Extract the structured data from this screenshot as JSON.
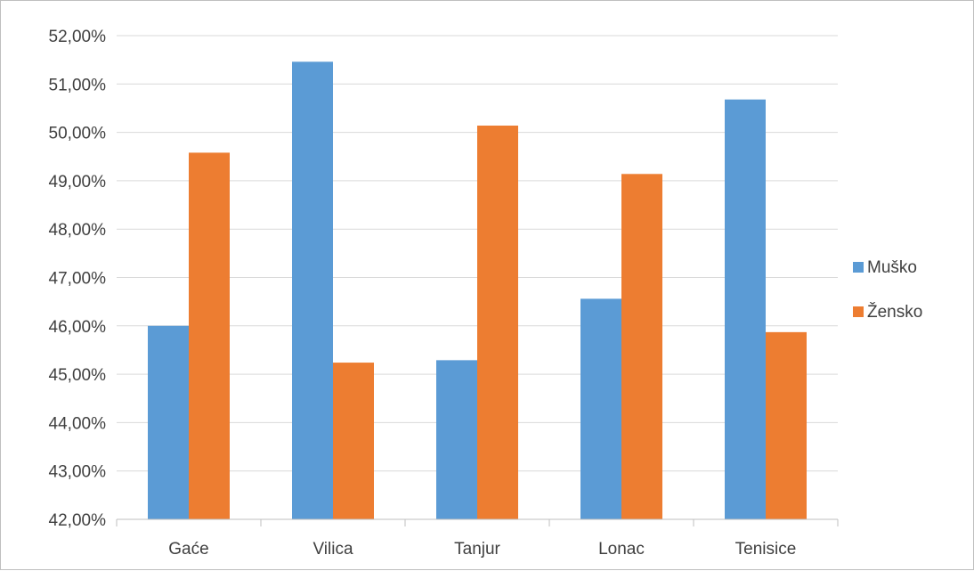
{
  "chart_data": {
    "type": "bar",
    "categories": [
      "Gaće",
      "Vilica",
      "Tanjur",
      "Lonac",
      "Tenisice"
    ],
    "series": [
      {
        "name": "Muško",
        "values": [
          46.0,
          51.46,
          45.29,
          46.56,
          50.68
        ],
        "color": "#5b9bd5"
      },
      {
        "name": "Žensko",
        "values": [
          49.58,
          45.24,
          50.14,
          49.14,
          45.87
        ],
        "color": "#ed7d31"
      }
    ],
    "ylim": [
      42,
      52
    ],
    "y_ticks": [
      "42,00%",
      "43,00%",
      "44,00%",
      "45,00%",
      "46,00%",
      "47,00%",
      "48,00%",
      "49,00%",
      "50,00%",
      "51,00%",
      "52,00%"
    ],
    "grid": true,
    "legend_position": "right",
    "title": "",
    "xlabel": "",
    "ylabel": ""
  }
}
